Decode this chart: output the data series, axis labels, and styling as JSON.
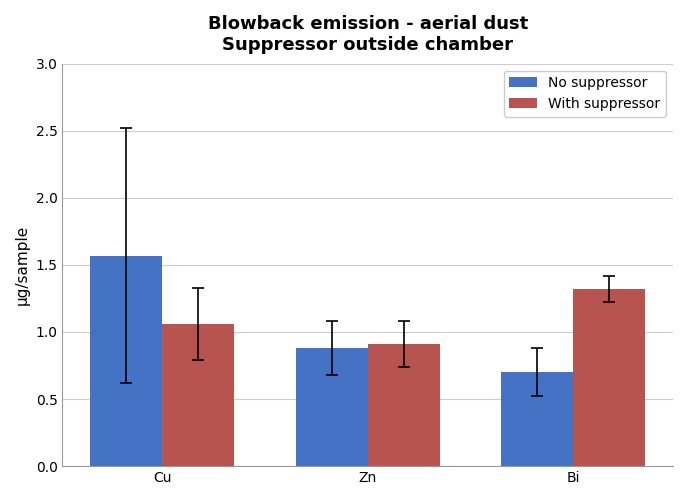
{
  "title_line1": "Blowback emission - aerial dust",
  "title_line2": "Suppressor outside chamber",
  "categories": [
    "Cu",
    "Zn",
    "Bi"
  ],
  "no_suppressor_values": [
    1.57,
    0.88,
    0.7
  ],
  "with_suppressor_values": [
    1.06,
    0.91,
    1.32
  ],
  "no_suppressor_errors": [
    0.95,
    0.2,
    0.18
  ],
  "with_suppressor_errors": [
    0.27,
    0.17,
    0.1
  ],
  "no_suppressor_color": "#4472C4",
  "with_suppressor_color": "#B85450",
  "ylabel": "μg/sample",
  "ylim": [
    0,
    3
  ],
  "yticks": [
    0,
    0.5,
    1.0,
    1.5,
    2.0,
    2.5,
    3.0
  ],
  "legend_labels": [
    "No suppressor",
    "With suppressor"
  ],
  "bar_width": 0.35,
  "background_color": "#FFFFFF",
  "grid_color": "#CCCCCC",
  "title_fontsize": 13,
  "axis_fontsize": 11,
  "tick_fontsize": 10,
  "legend_fontsize": 10
}
